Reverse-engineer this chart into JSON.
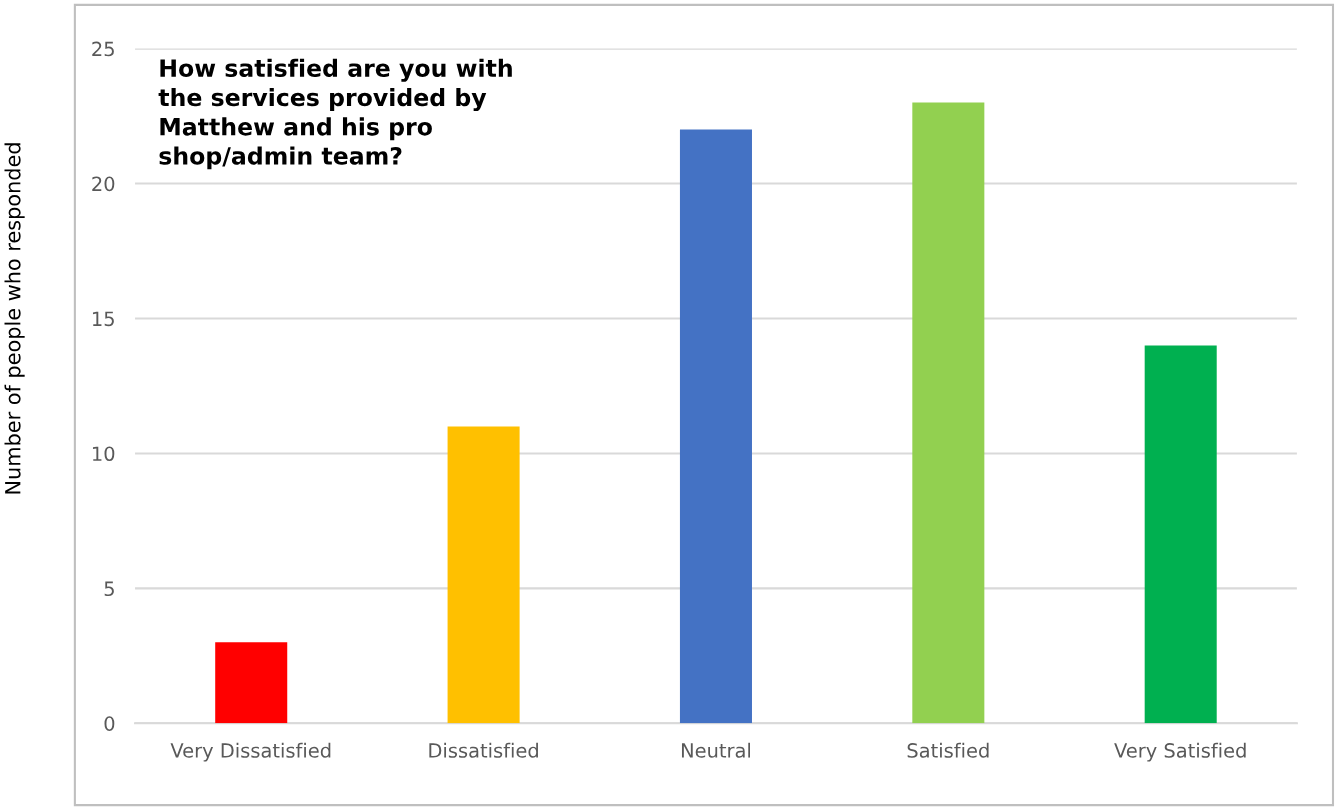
{
  "chart_data": {
    "type": "bar",
    "title": "How satisfied are you with\nthe services provided by\nMatthew and his pro\nshop/admin team?",
    "ylabel": "Number of people who responded",
    "categories": [
      "Very Dissatisfied",
      "Dissatisfied",
      "Neutral",
      "Satisfied",
      "Very Satisfied"
    ],
    "values": [
      3,
      11,
      22,
      23,
      14
    ],
    "colors": [
      "#ff0000",
      "#ffc000",
      "#4472c4",
      "#92d050",
      "#00b050"
    ],
    "ylim": [
      0,
      25
    ],
    "yticks": [
      0,
      5,
      10,
      15,
      20,
      25
    ],
    "grid": "y"
  }
}
